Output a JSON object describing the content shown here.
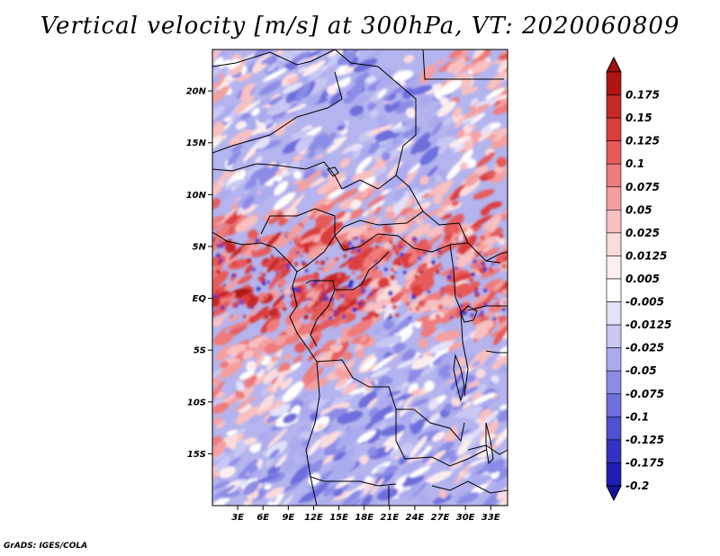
{
  "title": "Vertical velocity [m/s] at 300hPa, VT: 2020060809",
  "credit": "GrADS: IGES/COLA",
  "map": {
    "variable": "Vertical velocity",
    "units": "m/s",
    "level": "300hPa",
    "valid_time": "2020060809",
    "lon_range": [
      0,
      35
    ],
    "lat_range": [
      -20,
      24
    ],
    "lat_ticks": [
      {
        "value": 20,
        "label": "20N"
      },
      {
        "value": 15,
        "label": "15N"
      },
      {
        "value": 10,
        "label": "10N"
      },
      {
        "value": 5,
        "label": "5N"
      },
      {
        "value": 0,
        "label": "EQ"
      },
      {
        "value": -5,
        "label": "5S"
      },
      {
        "value": -10,
        "label": "10S"
      },
      {
        "value": -15,
        "label": "15S"
      }
    ],
    "lon_ticks": [
      {
        "value": 3,
        "label": "3E"
      },
      {
        "value": 6,
        "label": "6E"
      },
      {
        "value": 9,
        "label": "9E"
      },
      {
        "value": 12,
        "label": "12E"
      },
      {
        "value": 15,
        "label": "15E"
      },
      {
        "value": 18,
        "label": "18E"
      },
      {
        "value": 21,
        "label": "21E"
      },
      {
        "value": 24,
        "label": "24E"
      },
      {
        "value": 27,
        "label": "27E"
      },
      {
        "value": 30,
        "label": "30E"
      },
      {
        "value": 33,
        "label": "33E"
      }
    ],
    "field_pattern": [
      {
        "lon": 1.5,
        "lat": 3.5,
        "value": 0.15
      },
      {
        "lon": 5,
        "lat": 2,
        "value": 0.175
      },
      {
        "lon": 7,
        "lat": 3,
        "value": 0.125
      },
      {
        "lon": 16,
        "lat": 0,
        "value": 0.15
      },
      {
        "lon": 18,
        "lat": -1.5,
        "value": 0.125
      },
      {
        "lon": 24,
        "lat": 1,
        "value": 0.1
      },
      {
        "lon": 29,
        "lat": 4,
        "value": 0.1
      },
      {
        "lon": 33,
        "lat": 9,
        "value": 0.1
      },
      {
        "lon": 33,
        "lat": 6,
        "value": 0.1
      },
      {
        "lon": 31,
        "lat": 23,
        "value": 0.075
      },
      {
        "lon": 2,
        "lat": -7,
        "value": 0.05
      },
      {
        "lon": 21,
        "lat": -4,
        "value": -0.05
      },
      {
        "lon": 14,
        "lat": 18,
        "value": -0.05
      },
      {
        "lon": 25,
        "lat": 16,
        "value": -0.05
      },
      {
        "lon": 10,
        "lat": -15,
        "value": -0.05
      },
      {
        "lon": 20,
        "lat": -14,
        "value": -0.05
      },
      {
        "lon": 5,
        "lat": 12,
        "value": -0.025
      },
      {
        "lon": 28,
        "lat": -10,
        "value": -0.025
      }
    ]
  },
  "colorbar": {
    "levels": [
      {
        "label": "0.175",
        "color": "#b21414"
      },
      {
        "label": "0.15",
        "color": "#c82828"
      },
      {
        "label": "0.125",
        "color": "#dc3c3c"
      },
      {
        "label": "0.1",
        "color": "#e65a5a"
      },
      {
        "label": "0.075",
        "color": "#ee7c7c"
      },
      {
        "label": "0.05",
        "color": "#f4a0a0"
      },
      {
        "label": "0.025",
        "color": "#f8c0c0"
      },
      {
        "label": "0.0125",
        "color": "#fbdcdc"
      },
      {
        "label": "0.005",
        "color": "#fdeeee"
      },
      {
        "label": "-0.005",
        "color": "#ffffff"
      },
      {
        "label": "-0.0125",
        "color": "#e2e2fa"
      },
      {
        "label": "-0.025",
        "color": "#c8c8f4"
      },
      {
        "label": "-0.05",
        "color": "#aaaaee"
      },
      {
        "label": "-0.075",
        "color": "#8c8ce6"
      },
      {
        "label": "-0.1",
        "color": "#6e6edc"
      },
      {
        "label": "-0.125",
        "color": "#5050d2"
      },
      {
        "label": "-0.175",
        "color": "#3232c3"
      },
      {
        "label": "-0.2",
        "color": "#1e1eb4"
      }
    ],
    "top_color": "#a01010",
    "bottom_color": "#1414a0"
  }
}
